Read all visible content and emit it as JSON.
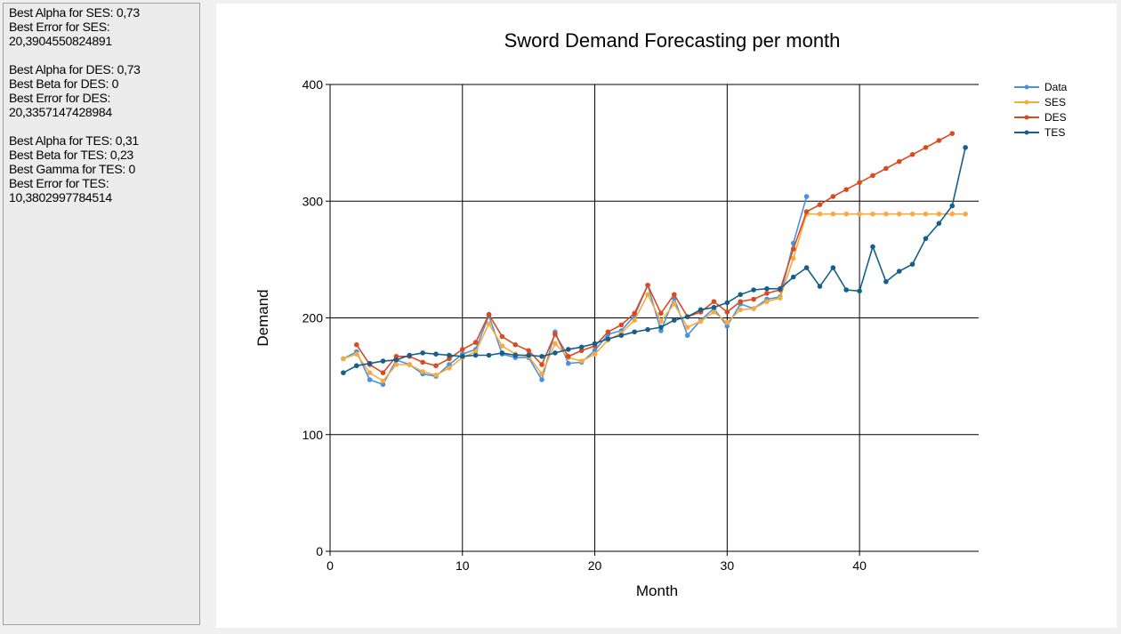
{
  "results_panel": {
    "lines": [
      "Best Alpha for SES: 0,73",
      "Best Error for SES:",
      "20,3904550824891",
      "",
      "Best Alpha for DES: 0,73",
      "Best Beta for DES: 0",
      "Best Error for DES:",
      "20,3357147428984",
      "",
      "Best Alpha for TES: 0,31",
      "Best Beta for TES: 0,23",
      "Best Gamma for TES: 0",
      "Best Error for TES:",
      "10,3802997784514"
    ]
  },
  "chart_data": {
    "type": "line",
    "title": "Sword Demand Forecasting per month",
    "xlabel": "Month",
    "ylabel": "Demand",
    "xlim": [
      0,
      49
    ],
    "ylim": [
      0,
      400
    ],
    "x_ticks": [
      0,
      10,
      20,
      30,
      40
    ],
    "y_ticks": [
      0,
      100,
      200,
      300,
      400
    ],
    "grid": true,
    "legend_position": "top-right",
    "series": [
      {
        "name": "Data",
        "color": "#4d8fe0",
        "x": [
          1,
          2,
          3,
          4,
          5,
          6,
          7,
          8,
          9,
          10,
          11,
          12,
          13,
          14,
          15,
          16,
          17,
          18,
          19,
          20,
          21,
          22,
          23,
          24,
          25,
          26,
          27,
          28,
          29,
          30,
          31,
          32,
          33,
          34,
          35,
          36
        ],
        "values": [
          165,
          171,
          147,
          143,
          164,
          160,
          152,
          150,
          160,
          169,
          173,
          202,
          169,
          166,
          166,
          147,
          188,
          161,
          162,
          172,
          186,
          189,
          202,
          228,
          189,
          217,
          185,
          198,
          208,
          193,
          212,
          208,
          216,
          218,
          264,
          304
        ]
      },
      {
        "name": "SES",
        "color": "#f4ad3d",
        "x": [
          1,
          2,
          3,
          4,
          5,
          6,
          7,
          8,
          9,
          10,
          11,
          12,
          13,
          14,
          15,
          16,
          17,
          18,
          19,
          20,
          21,
          22,
          23,
          24,
          25,
          26,
          27,
          28,
          29,
          30,
          31,
          32,
          33,
          34,
          35,
          36,
          37,
          38,
          39,
          40,
          41,
          42,
          43,
          44,
          45,
          46,
          47,
          48
        ],
        "values": [
          165,
          169,
          153,
          146,
          160,
          160,
          154,
          151,
          157,
          166,
          171,
          195,
          176,
          169,
          167,
          152,
          178,
          166,
          163,
          169,
          181,
          187,
          198,
          220,
          197,
          212,
          192,
          197,
          205,
          196,
          207,
          208,
          214,
          217,
          251,
          289,
          289,
          289,
          289,
          289,
          289,
          289,
          289,
          289,
          289,
          289,
          289,
          289
        ]
      },
      {
        "name": "DES",
        "color": "#d94a1e",
        "x": [
          2,
          3,
          4,
          5,
          6,
          7,
          8,
          9,
          10,
          11,
          12,
          13,
          14,
          15,
          16,
          17,
          18,
          19,
          20,
          21,
          22,
          23,
          24,
          25,
          26,
          27,
          28,
          29,
          30,
          31,
          32,
          33,
          34,
          35,
          36,
          37,
          38,
          39,
          40,
          41,
          42,
          43,
          44,
          45,
          46,
          47
        ],
        "values": [
          177,
          160,
          153,
          167,
          167,
          162,
          159,
          165,
          173,
          179,
          203,
          184,
          177,
          172,
          160,
          186,
          167,
          172,
          176,
          188,
          194,
          204,
          228,
          204,
          220,
          201,
          205,
          214,
          205,
          214,
          216,
          221,
          224,
          259,
          291,
          297,
          304,
          310,
          316,
          322,
          328,
          334,
          340,
          346,
          352,
          358
        ]
      },
      {
        "name": "TES",
        "color": "#155f8a",
        "x": [
          1,
          2,
          3,
          4,
          5,
          6,
          7,
          8,
          9,
          10,
          11,
          12,
          13,
          14,
          15,
          16,
          17,
          18,
          19,
          20,
          21,
          22,
          23,
          24,
          25,
          26,
          27,
          28,
          29,
          30,
          31,
          32,
          33,
          34,
          35,
          36,
          37,
          38,
          39,
          40,
          41,
          42,
          43,
          44,
          45,
          46,
          47,
          48
        ],
        "values": [
          153,
          159,
          161,
          163,
          164,
          168,
          170,
          169,
          168,
          167,
          168,
          168,
          170,
          168,
          168,
          167,
          170,
          173,
          175,
          178,
          182,
          185,
          188,
          190,
          192,
          198,
          201,
          207,
          209,
          213,
          220,
          224,
          225,
          225,
          235,
          243,
          227,
          243,
          224,
          223,
          261,
          231,
          240,
          246,
          268,
          281,
          296,
          346
        ]
      }
    ]
  }
}
